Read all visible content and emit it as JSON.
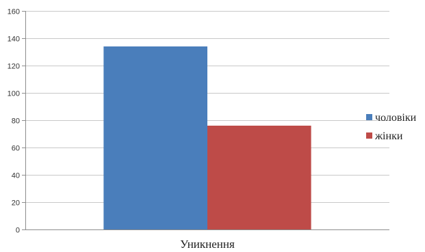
{
  "chart_data": {
    "type": "bar",
    "categories": [
      "Уникнення"
    ],
    "series": [
      {
        "name": "чоловіки",
        "values": [
          134
        ],
        "color": "#4a7ebb"
      },
      {
        "name": "жінки",
        "values": [
          76
        ],
        "color": "#be4b48"
      }
    ],
    "ylim": [
      0,
      160
    ],
    "yticks": [
      0,
      20,
      40,
      60,
      80,
      100,
      120,
      140,
      160
    ],
    "grid": true,
    "legend": "right"
  }
}
